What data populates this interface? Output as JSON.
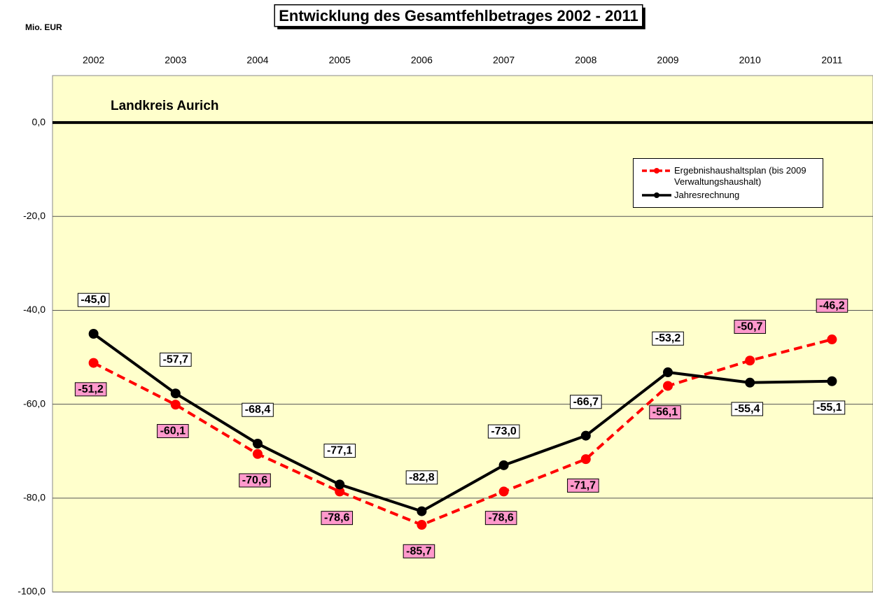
{
  "chart_data": {
    "type": "line",
    "title": "Entwicklung des Gesamtfehlbetrages 2002 - 2011",
    "y_axis_label": "Mio. EUR",
    "annotation": "Landkreis Aurich",
    "categories": [
      "2002",
      "2003",
      "2004",
      "2005",
      "2006",
      "2007",
      "2008",
      "2009",
      "2010",
      "2011"
    ],
    "series": [
      {
        "name": "Ergebnishaushaltsplan (bis 2009 Verwaltungshaushalt)",
        "color": "#ff0000",
        "dashed": true,
        "label_fill": "#ff99cc",
        "values": [
          -51.2,
          -60.1,
          -70.6,
          -78.6,
          -85.7,
          -78.6,
          -71.7,
          -56.1,
          -50.7,
          -46.2
        ],
        "value_labels": [
          "-51,2",
          "-60,1",
          "-70,6",
          "-78,6",
          "-85,7",
          "-78,6",
          "-71,7",
          "-56,1",
          "-50,7",
          "-46,2"
        ]
      },
      {
        "name": "Jahresrechnung",
        "color": "#000000",
        "dashed": false,
        "label_fill": "#ffffff",
        "values": [
          -45.0,
          -57.7,
          -68.4,
          -77.1,
          -82.8,
          -73.0,
          -66.7,
          -53.2,
          -55.4,
          -55.1
        ],
        "value_labels": [
          "-45,0",
          "-57,7",
          "-68,4",
          "-77,1",
          "-82,8",
          "-73,0",
          "-66,7",
          "-53,2",
          "-55,4",
          "-55,1"
        ]
      }
    ],
    "ylim": [
      -100,
      10
    ],
    "yticks": [
      {
        "value": 0,
        "label": "0,0"
      },
      {
        "value": -20,
        "label": "-20,0"
      },
      {
        "value": -40,
        "label": "-40,0"
      },
      {
        "value": -60,
        "label": "-60,0"
      },
      {
        "value": -80,
        "label": "-80,0"
      },
      {
        "value": -100,
        "label": "-100,0"
      }
    ],
    "grid": true,
    "plot_background": "#ffffcc",
    "legend_position": "upper right"
  }
}
